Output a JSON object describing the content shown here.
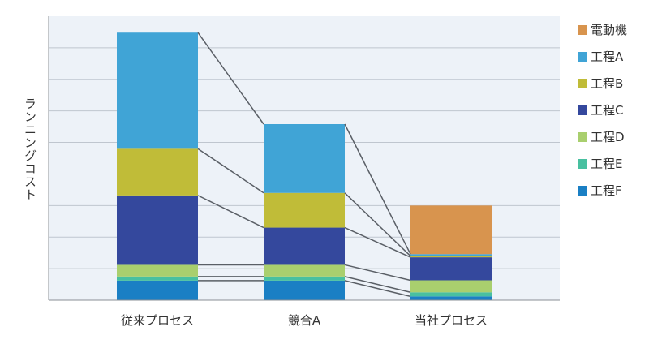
{
  "chart_data": {
    "type": "bar",
    "stacked": true,
    "title": "",
    "xlabel": "",
    "ylabel": "ランニングコスト",
    "ylim": [
      0,
      9
    ],
    "grid": true,
    "legend_position": "right",
    "categories": [
      "従来プロセス",
      "競合A",
      "当社プロセス"
    ],
    "series": [
      {
        "name": "工程F",
        "color": "#1a7fc4",
        "values": [
          0.62,
          0.62,
          0.12
        ]
      },
      {
        "name": "工程E",
        "color": "#48c0a0",
        "values": [
          0.13,
          0.13,
          0.13
        ]
      },
      {
        "name": "工程D",
        "color": "#a9cf6e",
        "values": [
          0.37,
          0.37,
          0.38
        ]
      },
      {
        "name": "工程C",
        "color": "#34489d",
        "values": [
          2.2,
          1.18,
          0.73
        ]
      },
      {
        "name": "工程B",
        "color": "#c0bc38",
        "values": [
          1.48,
          1.1,
          0.04
        ]
      },
      {
        "name": "工程A",
        "color": "#40a4d6",
        "values": [
          3.68,
          2.18,
          0.06
        ]
      },
      {
        "name": "電動機",
        "color": "#d8944e",
        "values": [
          0,
          0,
          1.54
        ]
      }
    ],
    "legend_order": [
      "電動機",
      "工程A",
      "工程B",
      "工程C",
      "工程D",
      "工程E",
      "工程F"
    ]
  }
}
